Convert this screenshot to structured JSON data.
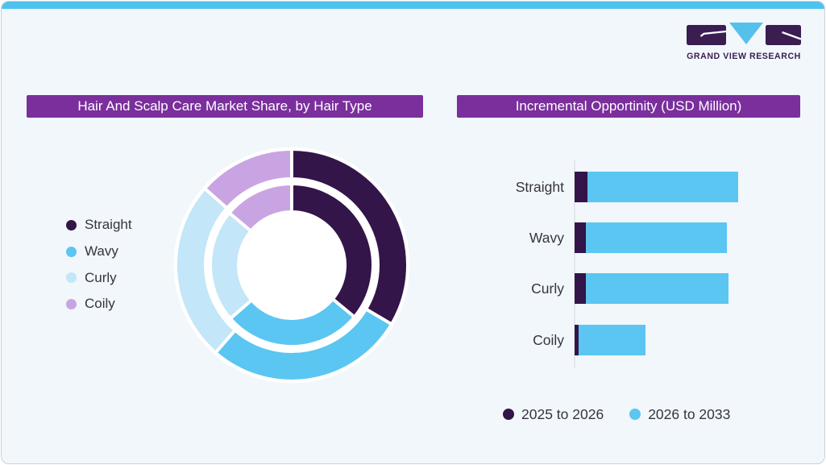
{
  "theme": {
    "page_background": "#ffffff",
    "card_background": "#f1f7fa",
    "card_border": "#ccd3d9",
    "top_strip_color": "#4ec2ef",
    "title_bar_color": "#7a2f9c",
    "title_text_color": "#ffffff",
    "body_text_color": "#37343f",
    "axis_line_color": "#e2e7eb",
    "dark_purple": "#331549",
    "bright_blue": "#5bc6f1",
    "pale_blue": "#c3e6f8",
    "lavender": "#c9a4e3"
  },
  "logo": {
    "text": "GRAND VIEW RESEARCH",
    "glyphs": [
      "g-block",
      "v-triangle",
      "r-block"
    ],
    "dark_color": "#3b1d52",
    "blue_color": "#54c0ec"
  },
  "chart_data": [
    {
      "type": "pie",
      "variant": "double-ring-donut",
      "title": "Hair And Scalp Care Market Share, by Hair Type",
      "categories": [
        "Straight",
        "Wavy",
        "Curly",
        "Coily"
      ],
      "colors": [
        "#331549",
        "#5bc6f1",
        "#c3e6f8",
        "#c9a4e3"
      ],
      "rings": [
        {
          "name": "outer",
          "values": [
            33.5,
            27.9,
            25.1,
            13.5
          ]
        },
        {
          "name": "inner",
          "values": [
            36.0,
            27.6,
            22.5,
            13.9
          ]
        }
      ],
      "units": "percent share (estimated from arc angles; no numeric labels shown)",
      "legend_position": "left",
      "start_angle_deg": 0,
      "clockwise": true
    },
    {
      "type": "bar",
      "orientation": "horizontal",
      "stacked": true,
      "title": "Incremental Opportinity (USD Million)",
      "categories": [
        "Straight",
        "Wavy",
        "Curly",
        "Coily"
      ],
      "series": [
        {
          "name": "2025 to 2026",
          "color": "#331549",
          "values": [
            16,
            14,
            14,
            5
          ]
        },
        {
          "name": "2026 to 2033",
          "color": "#5bc6f1",
          "values": [
            185,
            173,
            175,
            82
          ]
        }
      ],
      "units": "relative bar lengths (no value labels or axis ticks shown)",
      "legend_position": "bottom",
      "axis": "single vertical baseline at left, no ticks, no gridlines"
    }
  ]
}
